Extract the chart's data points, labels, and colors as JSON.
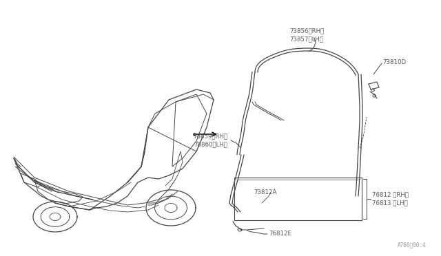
{
  "bg_color": "#ffffff",
  "line_color": "#444444",
  "text_color": "#555555",
  "arrow_color": "#000000",
  "fig_width": 6.4,
  "fig_height": 3.72,
  "watermark": "A766，00:4",
  "label_73856": "73856（RH）",
  "label_73857": "73857（LH）",
  "label_73810D": "73810D",
  "label_78859": "78859（RH）",
  "label_78860": "78860（LH）",
  "label_73812A": "73812A",
  "label_76812": "76812 （RH）",
  "label_76813": "76813 （LH）",
  "label_76812E": "76812E"
}
